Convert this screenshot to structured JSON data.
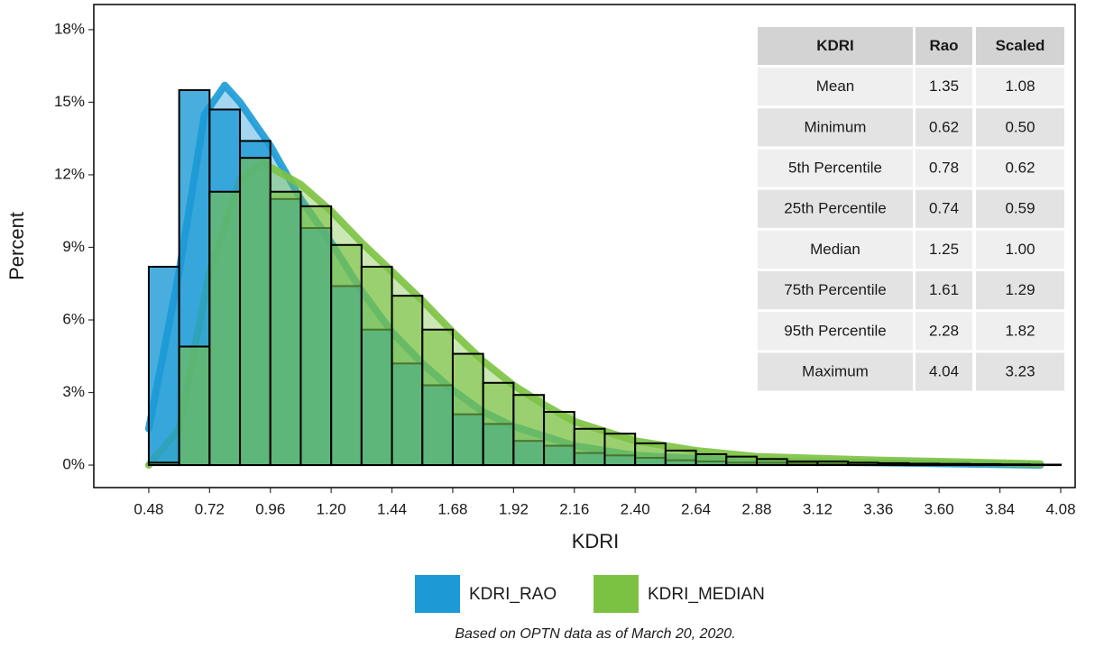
{
  "chart_data": {
    "type": "histogram",
    "x_label": "KDRI",
    "y_label": "Percent",
    "caption": "Based on OPTN data as of March 20, 2020.",
    "bins": [
      0.48,
      0.6,
      0.72,
      0.84,
      0.96,
      1.08,
      1.2,
      1.32,
      1.44,
      1.56,
      1.68,
      1.8,
      1.92,
      2.04,
      2.16,
      2.28,
      2.4,
      2.52,
      2.64,
      2.76,
      2.88,
      3,
      3.12,
      3.24,
      3.36,
      3.48,
      3.6,
      3.72,
      3.84,
      3.96,
      4.08
    ],
    "series": [
      {
        "name": "KDRI_RAO",
        "color": "#1b9ad6",
        "values": [
          8.2,
          15.5,
          14.7,
          13.4,
          11.0,
          9.8,
          7.4,
          5.6,
          4.2,
          3.3,
          2.1,
          1.7,
          1.0,
          0.8,
          0.5,
          0.4,
          0.3,
          0.2,
          0.15,
          0.1,
          0.1,
          0.08,
          0.06,
          0.05,
          0.04,
          0.03,
          0.02,
          0.02,
          0.01,
          0.01
        ],
        "density": {
          "x": [
            0.48,
            0.6,
            0.7,
            0.78,
            0.84,
            0.96,
            1.08,
            1.2,
            1.32,
            1.44,
            1.56,
            1.68,
            1.8,
            1.92,
            2.16,
            2.4,
            2.88,
            3.36,
            4.0
          ],
          "values": [
            1.5,
            8,
            14.5,
            15.7,
            15,
            13.2,
            11,
            9.2,
            7.2,
            5.5,
            4.2,
            3.1,
            2.2,
            1.6,
            0.8,
            0.4,
            0.15,
            0.1,
            0
          ]
        }
      },
      {
        "name": "KDRI_MEDIAN",
        "color": "#7cc242",
        "values": [
          0.1,
          4.9,
          11.3,
          12.7,
          11.3,
          10.7,
          9.1,
          8.2,
          7.0,
          5.6,
          4.6,
          3.4,
          2.9,
          2.2,
          1.5,
          1.3,
          0.9,
          0.6,
          0.45,
          0.35,
          0.25,
          0.15,
          0.15,
          0.1,
          0.08,
          0.06,
          0.05,
          0.04,
          0.03,
          0.02
        ],
        "density": {
          "x": [
            0.48,
            0.6,
            0.72,
            0.84,
            0.93,
            1.08,
            1.2,
            1.32,
            1.44,
            1.56,
            1.68,
            1.8,
            1.92,
            2.04,
            2.16,
            2.4,
            2.64,
            2.88,
            3.36,
            3.6,
            4.0
          ],
          "values": [
            0,
            1.5,
            8,
            11.8,
            12.5,
            11.6,
            10.5,
            9.2,
            8,
            6.8,
            5.5,
            4.3,
            3.3,
            2.5,
            1.8,
            1.0,
            0.6,
            0.35,
            0.2,
            0.15,
            0.05
          ]
        }
      }
    ],
    "xlim": [
      0.263,
      4.137
    ],
    "xticks": [
      0.48,
      0.72,
      0.96,
      {
        "value": 1.2,
        "label": "1.20"
      },
      1.44,
      1.68,
      1.92,
      2.16,
      {
        "value": 2.4,
        "label": "2.40"
      },
      2.64,
      2.88,
      3.12,
      3.36,
      {
        "value": 3.6,
        "label": "3.60"
      },
      3.84,
      4.08
    ],
    "ylim": [
      -0.93,
      19.04
    ],
    "yticks": [
      {
        "value": 0,
        "label": "0%"
      },
      {
        "value": 3,
        "label": "3%"
      },
      {
        "value": 6,
        "label": "6%"
      },
      {
        "value": 9,
        "label": "9%"
      },
      {
        "value": 12,
        "label": "12%"
      },
      {
        "value": 15,
        "label": "15%"
      },
      {
        "value": 18,
        "label": "18%"
      }
    ],
    "table": {
      "columns": [
        "KDRI",
        "Rao",
        "Scaled"
      ],
      "rows": [
        [
          "Mean",
          "1.35",
          "1.08"
        ],
        [
          "Minimum",
          "0.62",
          "0.50"
        ],
        [
          "5th Percentile",
          "0.78",
          "0.62"
        ],
        [
          "25th Percentile",
          "0.74",
          "0.59"
        ],
        [
          "Median",
          "1.25",
          "1.00"
        ],
        [
          "75th Percentile",
          "1.61",
          "1.29"
        ],
        [
          "95th Percentile",
          "2.28",
          "1.82"
        ],
        [
          "Maximum",
          "4.04",
          "3.23"
        ]
      ]
    }
  }
}
